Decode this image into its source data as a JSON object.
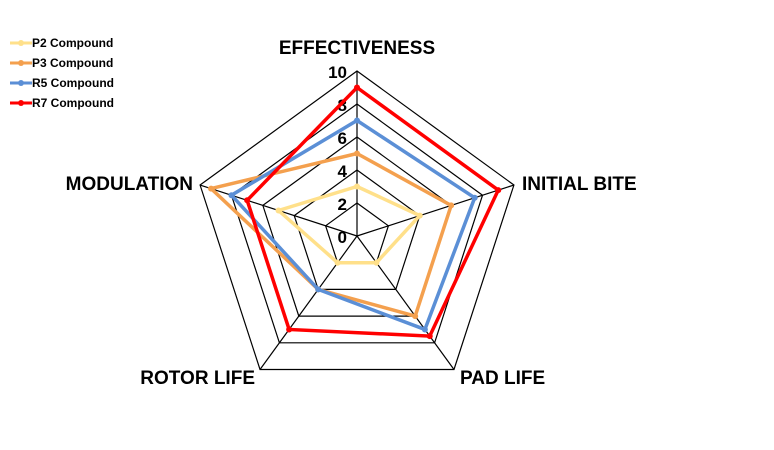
{
  "chart_data": {
    "type": "radar",
    "categories": [
      "EFFECTIVENESS",
      "INITIAL BITE",
      "PAD LIFE",
      "ROTOR LIFE",
      "MODULATION"
    ],
    "rlim": [
      0,
      10
    ],
    "ticks": [
      "0",
      "2",
      "4",
      "6",
      "8",
      "10"
    ],
    "grid": true,
    "legend": "top-left",
    "series": [
      {
        "name": "P2 Compound",
        "color": "#FFE08A",
        "values": [
          3,
          4,
          2,
          2,
          5
        ]
      },
      {
        "name": "P3 Compound",
        "color": "#F4A04E",
        "values": [
          5,
          6,
          6,
          4,
          9.3
        ]
      },
      {
        "name": "R5 Compound",
        "color": "#5B8FD6",
        "values": [
          7,
          7.5,
          7,
          4,
          8
        ]
      },
      {
        "name": "R7 Compound",
        "color": "#FF0000",
        "values": [
          9,
          9,
          7.5,
          7,
          7
        ]
      }
    ]
  }
}
